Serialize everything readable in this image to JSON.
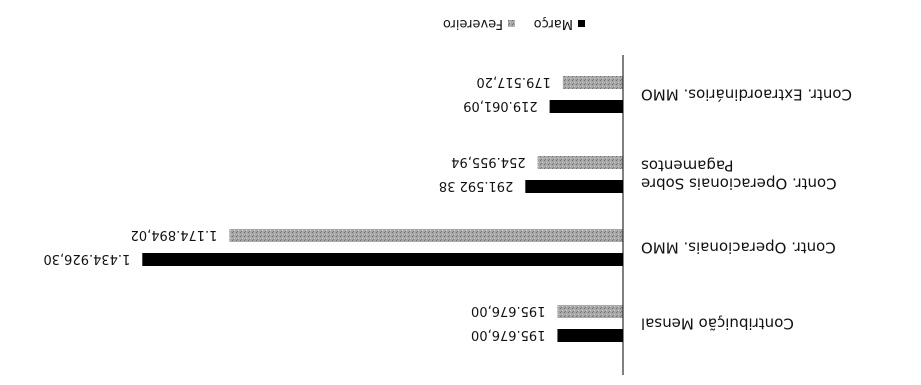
{
  "colors": {
    "marco": "#000000",
    "fevereiro": "#a8a8a8",
    "axis": "#000000"
  },
  "chart_data": {
    "type": "bar",
    "orientation": "horizontal",
    "rotated_180": true,
    "grid": false,
    "legend_placement": "bottom",
    "categories": [
      [
        "Contribuição Mensal"
      ],
      [
        "Contr. Operacionais. MMO"
      ],
      [
        "Contr. Operacionais Sobre",
        "Pagamentos"
      ],
      [
        "Contr. Extraordinários. MMO"
      ]
    ],
    "series": [
      {
        "name": "Março",
        "values": [
          195676.0,
          1434926.3,
          291592.38,
          219061.09
        ],
        "labels": [
          "195.676,00",
          "1.434.926,30",
          "291.592 38",
          "219.061,09"
        ]
      },
      {
        "name": "Fevereiro",
        "values": [
          195676.0,
          1174894.02,
          254955.94,
          179517.2
        ],
        "labels": [
          "195.676,00",
          "1.174.894,02",
          "254.955,94",
          "179.517,20"
        ]
      }
    ],
    "xlim": [
      0,
      1680000
    ]
  }
}
